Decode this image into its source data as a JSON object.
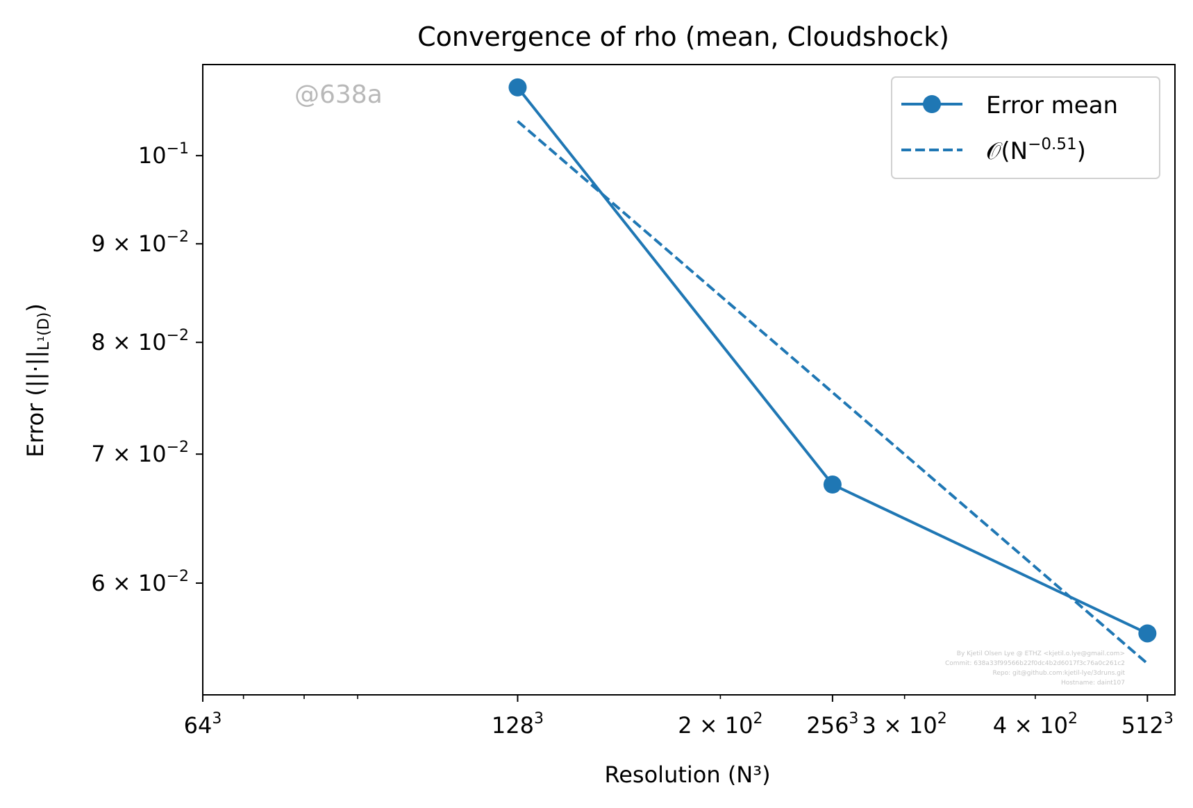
{
  "chart_data": {
    "type": "line",
    "title": "Convergence of rho (mean, Cloudshock)",
    "xlabel": "Resolution (N³)",
    "ylabel": "Error (||·||",
    "ylabel_sub": "L¹(D)",
    "ylabel_close": ")",
    "x_scale": "log",
    "y_scale": "log",
    "xlim": [
      64,
      544
    ],
    "ylim": [
      0.0525,
      0.1115
    ],
    "x_major_ticks": [
      {
        "value": 64,
        "label": "64",
        "sup": "3"
      },
      {
        "value": 128,
        "label": "128",
        "sup": "3"
      },
      {
        "value": 256,
        "label": "256",
        "sup": "3"
      },
      {
        "value": 512,
        "label": "512",
        "sup": "3"
      }
    ],
    "x_minor_ticks": [
      {
        "value": 70
      },
      {
        "value": 80
      },
      {
        "value": 90
      },
      {
        "value": 200,
        "label": "2 × 10",
        "sup": "2"
      },
      {
        "value": 300,
        "label": "3 × 10",
        "sup": "2"
      },
      {
        "value": 400,
        "label": "4 × 10",
        "sup": "2"
      }
    ],
    "y_ticks": [
      {
        "value": 0.1,
        "label": "10",
        "sup": "−1"
      },
      {
        "value": 0.09,
        "label": "9 × 10",
        "sup": "−2"
      },
      {
        "value": 0.08,
        "label": "8 × 10",
        "sup": "−2"
      },
      {
        "value": 0.07,
        "label": "7 × 10",
        "sup": "−2"
      },
      {
        "value": 0.06,
        "label": "6 × 10",
        "sup": "−2"
      }
    ],
    "series": [
      {
        "name": "Error mean",
        "style": "solid-marker",
        "color": "#1f77b4",
        "x": [
          128,
          256,
          512
        ],
        "y": [
          0.1085,
          0.0675,
          0.0565
        ]
      },
      {
        "name": "𝒪(N",
        "name_sup": "−0.51",
        "name_close": ")",
        "style": "dashed",
        "color": "#1f77b4",
        "x": [
          128,
          512
        ],
        "y": [
          0.1042,
          0.0545
        ]
      }
    ],
    "legend": "top-right",
    "grid": false,
    "watermark": "@638a",
    "credits": [
      "By Kjetil Olsen Lye @ ETHZ <kjetil.o.lye@gmail.com>",
      "Commit: 638a33f99566b22f0dc4b2d6017f3c76a0c261c2",
      "Repo: git@github.com:kjetil-lye/3druns.git",
      "Hostname: daint107"
    ]
  }
}
